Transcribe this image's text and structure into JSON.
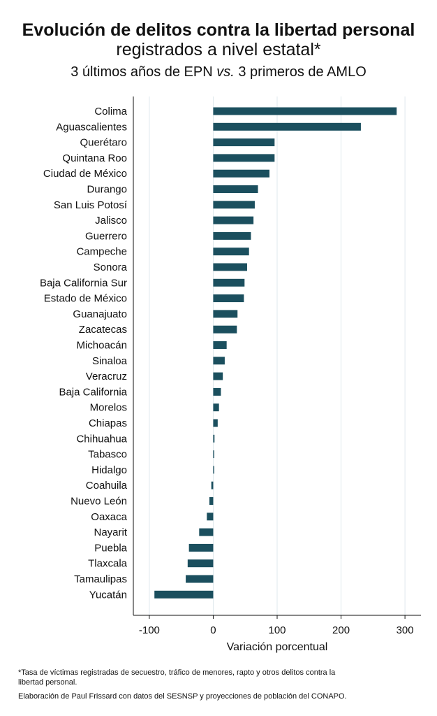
{
  "title": {
    "line1_regular": "Evolución de ",
    "line1_bold": "delitos contra la libertad personal",
    "line2": "registrados a nivel estatal*",
    "subtitle_part1": "3 últimos años de EPN ",
    "subtitle_italic": "vs.",
    "subtitle_part2": " 3 primeros de AMLO"
  },
  "footnotes": {
    "note": "*Tasa de víctimas registradas de secuestro, tráfico de menores, rapto y otros delitos contra la libertad personal.",
    "credit": "Elaboración de Paul Frissard con datos del SESNSP y proyecciones de población del CONAPO."
  },
  "colors": {
    "bar": "#1b4f5e",
    "grid": "#dfe8ec",
    "axis": "#111111"
  },
  "chart_data": {
    "type": "bar",
    "orientation": "horizontal",
    "xlabel": "Variación porcentual",
    "xlim": [
      -125,
      325
    ],
    "xticks": [
      -100,
      0,
      100,
      200,
      300
    ],
    "grid": true,
    "categories": [
      "Colima",
      "Aguascalientes",
      "Querétaro",
      "Quintana Roo",
      "Ciudad de México",
      "Durango",
      "San Luis Potosí",
      "Jalisco",
      "Guerrero",
      "Campeche",
      "Sonora",
      "Baja California Sur",
      "Estado de México",
      "Guanajuato",
      "Zacatecas",
      "Michoacán",
      "Sinaloa",
      "Veracruz",
      "Baja California",
      "Morelos",
      "Chiapas",
      "Chihuahua",
      "Tabasco",
      "Hidalgo",
      "Coahuila",
      "Nuevo León",
      "Oaxaca",
      "Nayarit",
      "Puebla",
      "Tlaxcala",
      "Tamaulipas",
      "Yucatán"
    ],
    "values": [
      287,
      231,
      96,
      96,
      88,
      70,
      65,
      63,
      59,
      56,
      53,
      49,
      48,
      38,
      37,
      21,
      18,
      15,
      12,
      9,
      7,
      2,
      1.5,
      1.5,
      -3,
      -6,
      -10,
      -22,
      -38,
      -40,
      -43,
      -92
    ]
  }
}
